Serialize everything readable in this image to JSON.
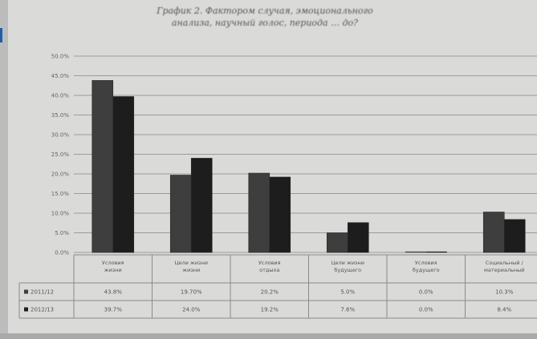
{
  "chart_data": {
    "type": "bar",
    "title_lines": [
      "График 2. Фактором случая, эмоционального",
      "анализа, научный голос, периода … до?"
    ],
    "categories": [
      [
        "Условия",
        "жизни"
      ],
      [
        "Цели жизни",
        "жизни"
      ],
      [
        "Условия",
        "отдыха"
      ],
      [
        "Цели жизни",
        "будущего"
      ],
      [
        "Условия",
        "будущего"
      ],
      [
        "Социальный /",
        "материальный"
      ]
    ],
    "series": [
      {
        "name": "2011/12",
        "color": "#3e3e3e",
        "values": [
          43.8,
          19.7,
          20.2,
          5.0,
          0.0,
          10.3
        ],
        "labels": [
          "43.8%",
          "19.70%",
          "20.2%",
          "5.0%",
          "0.0%",
          "10.3%"
        ]
      },
      {
        "name": "2012/13",
        "color": "#1d1d1d",
        "values": [
          39.7,
          24.0,
          19.2,
          7.6,
          0.0,
          8.4
        ],
        "labels": [
          "39.7%",
          "24.0%",
          "19.2%",
          "7.6%",
          "0.0%",
          "8.4%"
        ]
      }
    ],
    "ylim": [
      0,
      50
    ],
    "yticks": [
      0,
      5,
      10,
      15,
      20,
      25,
      30,
      35,
      40,
      45,
      50
    ],
    "ytick_labels": [
      "0.0%",
      "5.0%",
      "10.0%",
      "15.0%",
      "20.0%",
      "25.0%",
      "30.0%",
      "35.0%",
      "40.0%",
      "45.0%",
      "50.0%"
    ],
    "grid": true,
    "legend": "table-left"
  }
}
